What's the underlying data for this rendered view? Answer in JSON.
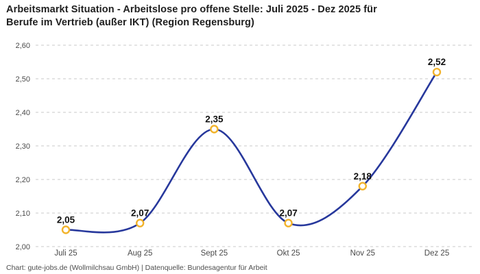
{
  "header": {
    "lines": [
      "Arbeitsmarkt Situation - Arbeitslose pro offene Stelle: Juli 2025 - Dez 2025 für",
      "Berufe im Vertrieb (außer IKT) (Region Regensburg)"
    ]
  },
  "footer": {
    "text": "Chart: gute-jobs.de (Wollmilchsau GmbH) | Datenquelle: Bundesagentur für Arbeit"
  },
  "chart_data": {
    "type": "line",
    "title": "Arbeitsmarkt Situation - Arbeitslose pro offene Stelle: Juli 2025 - Dez 2025 für Berufe im Vertrieb (außer IKT) (Region Regensburg)",
    "categories": [
      "Juli 25",
      "Aug 25",
      "Sept 25",
      "Okt 25",
      "Nov 25",
      "Dez 25"
    ],
    "values": [
      2.05,
      2.07,
      2.35,
      2.07,
      2.18,
      2.52
    ],
    "value_labels": [
      "2,05",
      "2,07",
      "2,35",
      "2,07",
      "2,18",
      "2,52"
    ],
    "xlabel": "",
    "ylabel": "",
    "ylim": [
      2.0,
      2.6
    ],
    "ytick_step": 0.1,
    "ytick_labels": [
      "2,00",
      "2,10",
      "2,20",
      "2,30",
      "2,40",
      "2,50",
      "2,60"
    ],
    "grid": "horizontal-dashed",
    "legend": "none",
    "line_smooth": true,
    "colors": {
      "line": "#27389c",
      "marker_stroke": "#f2b32b",
      "marker_fill": "#ffffff",
      "grid": "#c9c9c9",
      "title": "#202020",
      "axis_label": "#4a4a4a",
      "value_label": "#111111",
      "footer": "#4d4d4d",
      "background": "#ffffff"
    }
  }
}
